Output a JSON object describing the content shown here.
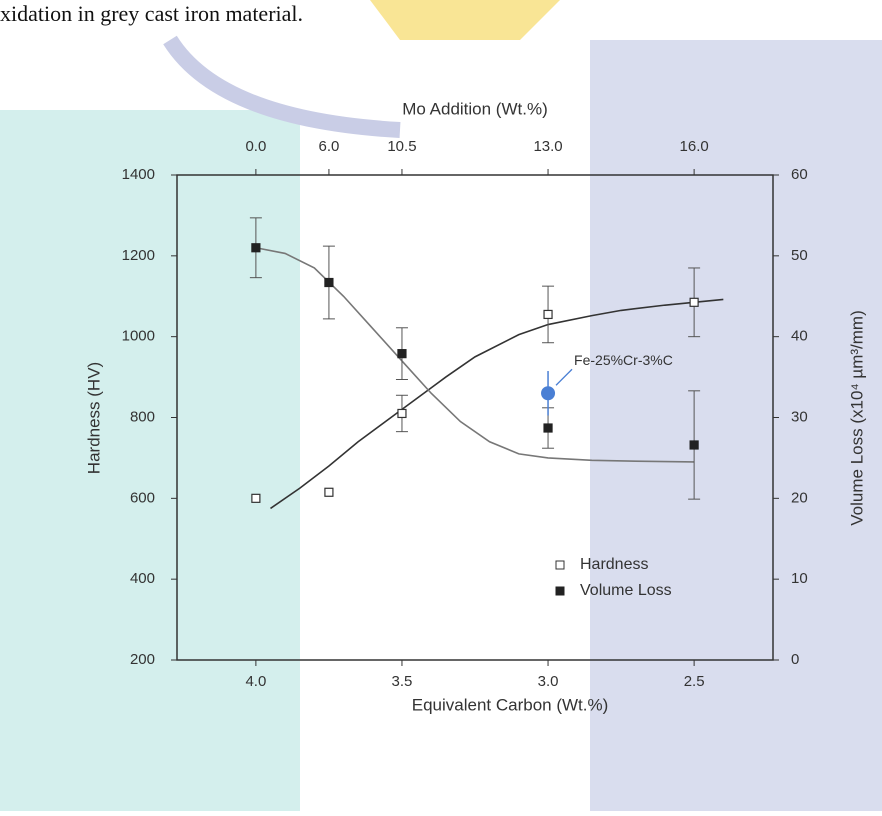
{
  "page_text": "xidation in grey cast iron material.",
  "chart_data": {
    "type": "scatter",
    "x2label": "Mo Addition (Wt.%)",
    "xlabel": "Equivalent Carbon (Wt.%)",
    "ylabel": "Hardness (HV)",
    "y2label": "Volume Loss (x10⁴ µm³/mm)",
    "xlim": [
      4.27,
      2.23
    ],
    "xticks": [
      {
        "value": 4,
        "label": "4.0"
      },
      {
        "value": 3.5,
        "label": "3.5"
      },
      {
        "value": 3,
        "label": "3.0"
      },
      {
        "value": 2.5,
        "label": "2.5"
      }
    ],
    "x2ticks": [
      {
        "value": 0,
        "label": "0.0"
      },
      {
        "value": 6,
        "label": "6.0"
      },
      {
        "value": 10.5,
        "label": "10.5"
      },
      {
        "value": 13,
        "label": "13.0"
      },
      {
        "value": 16,
        "label": "16.0"
      }
    ],
    "x2_at": [
      4,
      3.75,
      3.5,
      3,
      2.5
    ],
    "ylim": [
      200,
      1400
    ],
    "yticks": [
      200,
      400,
      600,
      800,
      1000,
      1200,
      1400
    ],
    "y2lim": [
      0,
      60
    ],
    "y2ticks": [
      0,
      10,
      20,
      30,
      40,
      50,
      60
    ],
    "legend": "lower right",
    "series": [
      {
        "name": "Hardness",
        "marker": "open-square",
        "color": "#333333",
        "x": [
          4,
          3.75,
          3.5,
          3,
          2.5
        ],
        "values": [
          600,
          615,
          810,
          1055,
          1085
        ],
        "errors": [
          null,
          null,
          45,
          70,
          85
        ]
      },
      {
        "name": "Volume Loss",
        "axis": "y2",
        "marker": "filled-square",
        "color": "#222222",
        "x": [
          4,
          3.75,
          3.5,
          3,
          2.5
        ],
        "values": [
          51,
          46.7,
          37.9,
          28.7,
          26.6
        ],
        "errors": [
          3.7,
          4.5,
          3.2,
          2.5,
          6.7
        ]
      }
    ],
    "curves": [
      {
        "color": "#333333",
        "x": [
          3.95,
          3.85,
          3.75,
          3.65,
          3.5,
          3.35,
          3.25,
          3.1,
          3.0,
          2.85,
          2.75,
          2.6,
          2.5,
          2.4
        ],
        "values": [
          575,
          625,
          680,
          740,
          820,
          900,
          950,
          1005,
          1030,
          1052,
          1065,
          1078,
          1085,
          1092
        ]
      },
      {
        "axis": "y2",
        "color": "#777777",
        "x": [
          4.0,
          3.9,
          3.8,
          3.7,
          3.6,
          3.5,
          3.4,
          3.3,
          3.2,
          3.1,
          3.0,
          2.85,
          2.7,
          2.5
        ],
        "values": [
          51,
          50.3,
          48.5,
          45,
          41,
          37,
          33,
          29.5,
          27,
          25.5,
          25,
          24.7,
          24.6,
          24.5
        ]
      }
    ],
    "annotation": {
      "text": "Fe-25%Cr-3%C",
      "color": "#4a7fd4",
      "x": 3.0,
      "y": 860,
      "error": 55
    }
  }
}
